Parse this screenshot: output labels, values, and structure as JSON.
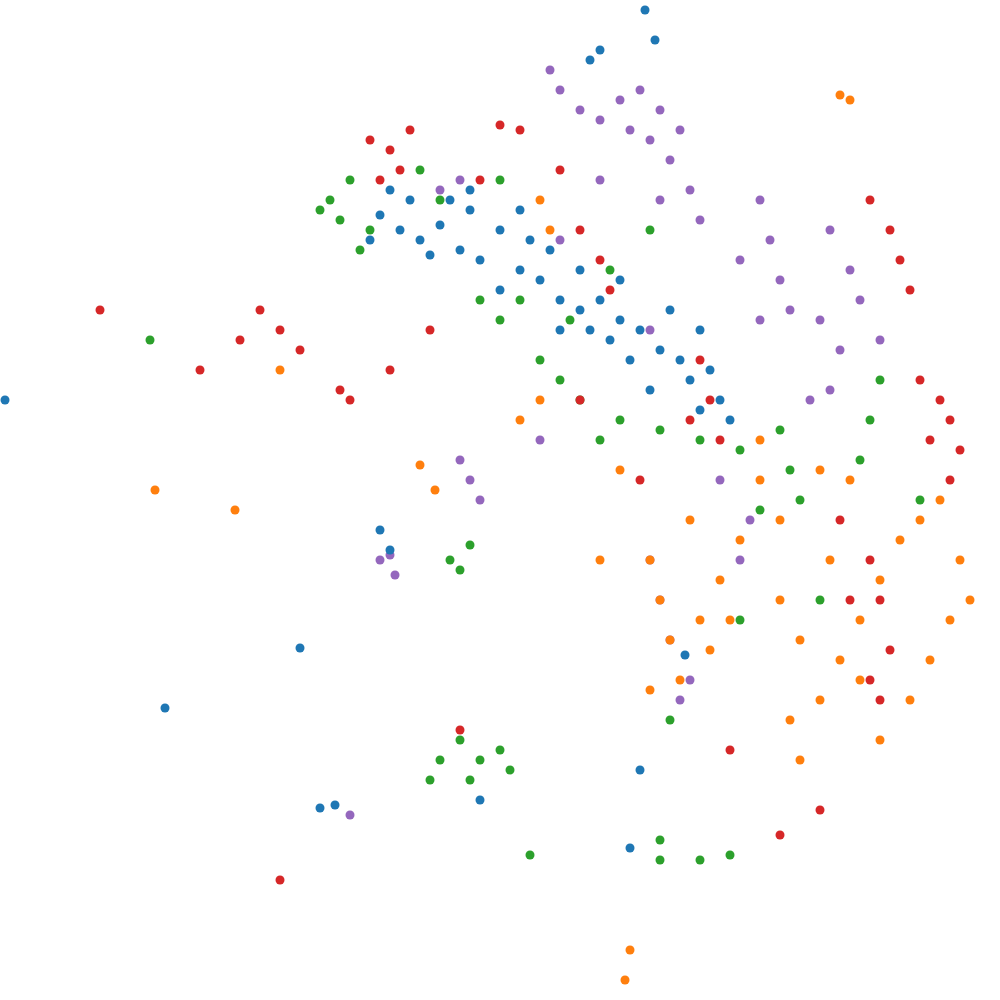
{
  "chart_data": {
    "type": "scatter",
    "xlim": [
      0,
      1000
    ],
    "ylim": [
      0,
      1000
    ],
    "tick_labels": false,
    "marker": "circle",
    "grid": false,
    "series": [
      {
        "color": "#9467bd",
        "x": [
          620,
          640,
          660,
          680,
          650,
          670,
          630,
          600,
          580,
          560,
          550,
          690,
          700,
          660,
          760,
          770,
          780,
          760,
          790,
          740,
          830,
          850,
          860,
          880,
          840,
          820,
          460,
          470,
          480,
          390,
          395,
          380,
          650,
          660,
          670,
          690,
          680,
          740,
          750,
          460,
          440,
          600,
          720,
          810,
          830,
          350,
          540,
          650,
          560
        ],
        "y": [
          900,
          910,
          890,
          870,
          860,
          840,
          870,
          880,
          890,
          910,
          930,
          810,
          780,
          800,
          800,
          760,
          720,
          680,
          690,
          740,
          770,
          730,
          700,
          660,
          650,
          680,
          540,
          520,
          500,
          445,
          425,
          440,
          440,
          400,
          360,
          320,
          300,
          440,
          480,
          820,
          810,
          820,
          520,
          600,
          610,
          185,
          560,
          670,
          760
        ]
      },
      {
        "color": "#1f77b4",
        "x": [
          380,
          400,
          420,
          440,
          460,
          480,
          500,
          520,
          540,
          560,
          580,
          600,
          620,
          640,
          660,
          680,
          700,
          710,
          720,
          730,
          650,
          630,
          610,
          590,
          550,
          530,
          470,
          450,
          410,
          390,
          500,
          560,
          690,
          670,
          600,
          590,
          645,
          655,
          380,
          390,
          165,
          300,
          320,
          335,
          480,
          640,
          630,
          685,
          470,
          520,
          430,
          370,
          700,
          620,
          580,
          5
        ],
        "y": [
          785,
          770,
          760,
          775,
          750,
          740,
          770,
          730,
          720,
          700,
          690,
          700,
          680,
          670,
          650,
          640,
          670,
          630,
          600,
          580,
          610,
          640,
          660,
          670,
          750,
          760,
          790,
          800,
          800,
          810,
          710,
          670,
          620,
          690,
          950,
          940,
          990,
          960,
          470,
          450,
          292,
          352,
          192,
          195,
          200,
          230,
          152,
          345,
          810,
          790,
          745,
          760,
          590,
          720,
          730,
          600
        ]
      },
      {
        "color": "#2ca02c",
        "x": [
          320,
          340,
          330,
          350,
          370,
          360,
          420,
          440,
          480,
          500,
          520,
          540,
          560,
          580,
          620,
          660,
          700,
          740,
          780,
          790,
          800,
          820,
          870,
          880,
          860,
          460,
          440,
          480,
          500,
          430,
          470,
          510,
          450,
          460,
          470,
          660,
          700,
          730,
          660,
          530,
          150,
          570,
          610,
          650,
          600,
          500,
          760,
          740,
          670,
          920
        ],
        "y": [
          790,
          780,
          800,
          820,
          770,
          750,
          830,
          800,
          700,
          680,
          700,
          640,
          620,
          600,
          580,
          570,
          560,
          550,
          570,
          530,
          500,
          400,
          580,
          620,
          540,
          260,
          240,
          240,
          250,
          220,
          220,
          230,
          440,
          430,
          455,
          140,
          140,
          145,
          160,
          145,
          660,
          680,
          730,
          770,
          560,
          820,
          490,
          380,
          280,
          500
        ]
      },
      {
        "color": "#d62728",
        "x": [
          370,
          390,
          400,
          380,
          410,
          500,
          520,
          870,
          890,
          900,
          910,
          920,
          940,
          950,
          930,
          960,
          870,
          880,
          890,
          880,
          870,
          700,
          710,
          720,
          690,
          600,
          610,
          580,
          350,
          340,
          200,
          240,
          280,
          300,
          260,
          390,
          280,
          460,
          820,
          780,
          730,
          560,
          480,
          840,
          850,
          100,
          430,
          580,
          640,
          950
        ],
        "y": [
          860,
          850,
          830,
          820,
          870,
          875,
          870,
          800,
          770,
          740,
          710,
          620,
          600,
          580,
          560,
          550,
          440,
          400,
          350,
          300,
          320,
          640,
          600,
          560,
          580,
          740,
          710,
          770,
          600,
          610,
          630,
          660,
          670,
          650,
          690,
          630,
          120,
          270,
          190,
          165,
          250,
          830,
          820,
          480,
          400,
          690,
          670,
          600,
          520,
          520
        ]
      },
      {
        "color": "#ff7f0e",
        "x": [
          650,
          660,
          670,
          680,
          700,
          720,
          740,
          760,
          690,
          710,
          650,
          730,
          780,
          800,
          820,
          840,
          860,
          880,
          900,
          920,
          940,
          960,
          950,
          930,
          910,
          880,
          790,
          800,
          860,
          830,
          850,
          820,
          540,
          550,
          540,
          520,
          850,
          840,
          630,
          625,
          235,
          155,
          420,
          435,
          600,
          760,
          780,
          280,
          620,
          970
        ],
        "y": [
          440,
          400,
          360,
          320,
          380,
          420,
          460,
          520,
          480,
          350,
          310,
          380,
          400,
          360,
          300,
          340,
          380,
          420,
          460,
          480,
          500,
          440,
          380,
          340,
          300,
          260,
          280,
          240,
          320,
          440,
          520,
          530,
          800,
          770,
          600,
          580,
          900,
          905,
          50,
          20,
          490,
          510,
          535,
          510,
          440,
          560,
          480,
          630,
          530,
          400
        ]
      }
    ]
  }
}
